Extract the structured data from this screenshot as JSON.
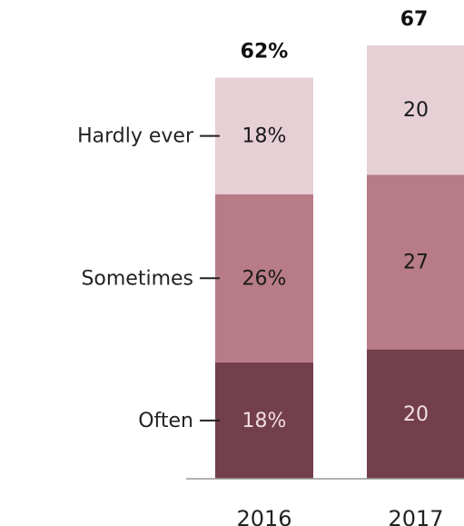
{
  "chart_data": {
    "type": "bar",
    "stacked": true,
    "categories": [
      "2016",
      "2017"
    ],
    "totals": [
      "62%",
      "67"
    ],
    "series": [
      {
        "name": "Often",
        "values": [
          18,
          20
        ],
        "labels": [
          "18%",
          "20"
        ],
        "color": "#733f4c",
        "label_color": "#f2dde2"
      },
      {
        "name": "Sometimes",
        "values": [
          26,
          27
        ],
        "labels": [
          "26%",
          "27"
        ],
        "color": "#b77c87",
        "label_color": "#1a1a1a"
      },
      {
        "name": "Hardly ever",
        "values": [
          18,
          20
        ],
        "labels": [
          "18%",
          "20"
        ],
        "color": "#e6cfd5",
        "label_color": "#1a1a1a"
      }
    ],
    "ylim": [
      0,
      72
    ],
    "grid": false,
    "legend": "left, labels attached to the 2016 bar"
  }
}
